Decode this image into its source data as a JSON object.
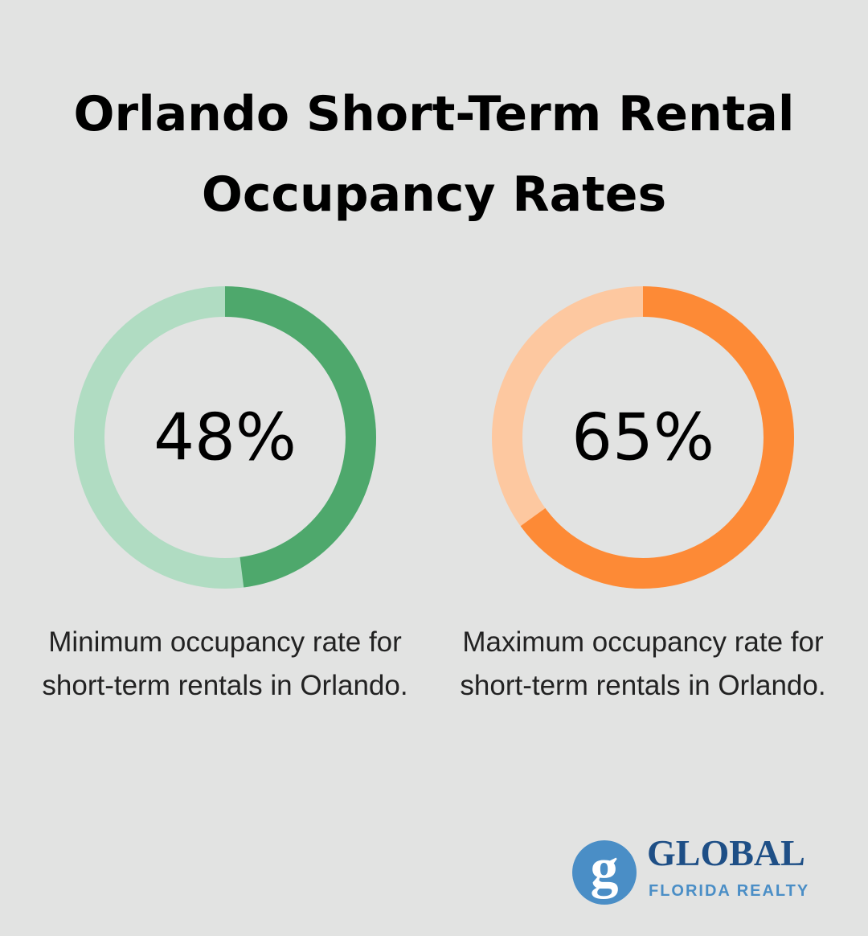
{
  "title": "Orlando Short-Term Rental Occupancy Rates",
  "chart_data": [
    {
      "type": "donut",
      "values": [
        48
      ],
      "value_labels": [
        "48%"
      ],
      "ylim": [
        0,
        100
      ],
      "color": "#4ea86c",
      "track_color": "#b0dcc2",
      "caption": "Minimum occupancy rate for short-term rentals in Orlando."
    },
    {
      "type": "donut",
      "values": [
        65
      ],
      "value_labels": [
        "65%"
      ],
      "ylim": [
        0,
        100
      ],
      "color": "#fd8a36",
      "track_color": "#fdc8a0",
      "caption": "Maximum occupancy rate for short-term rentals in Orlando."
    }
  ],
  "logo": {
    "mark": "g",
    "name": "GLOBAL",
    "tagline": "FLORIDA REALTY"
  }
}
